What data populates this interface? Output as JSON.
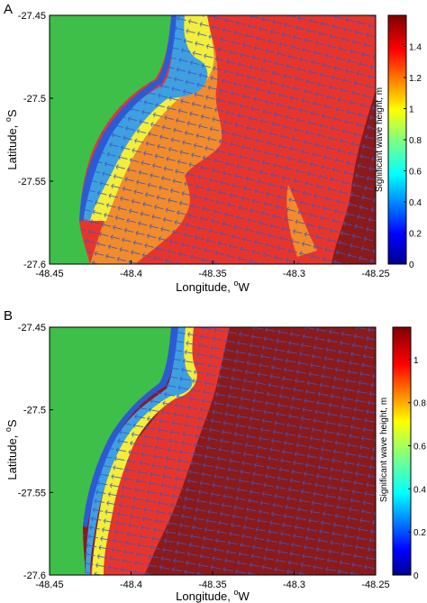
{
  "figure": {
    "panels": [
      "A",
      "B"
    ]
  },
  "chart_data": [
    {
      "type": "heatmap",
      "panel": "A",
      "xlabel": "Longitude, ",
      "xlabel_sup": "o",
      "xlabel_unit": "W",
      "ylabel": "Latitude, ",
      "ylabel_sup": "o",
      "ylabel_unit": "S",
      "x_ticks": [
        "-48.45",
        "-48.4",
        "-48.35",
        "-48.3",
        "-48.25"
      ],
      "y_ticks": [
        "-27.45",
        "-27.5",
        "-27.55",
        "-27.6"
      ],
      "xlim": [
        -48.45,
        -48.25
      ],
      "ylim": [
        -27.6,
        -27.45
      ],
      "colorbar": {
        "label": "Significant wave height, m",
        "ticks": [
          "0",
          "0.2",
          "0.4",
          "0.6",
          "0.8",
          "1",
          "1.2",
          "1.4"
        ],
        "range": [
          0,
          1.6
        ]
      },
      "regions": {
        "land": "#3dbf4a",
        "shoal_deep": "#2a5bd7",
        "shoal_cyan": "#3fa0e0",
        "surf_yellow": "#f2ee3a",
        "nearshore_orange": "#f28b2a",
        "offshore_red": "#e8352b",
        "far_offshore": "#8b1a1a"
      },
      "vector_color": "#3b56c8"
    },
    {
      "type": "heatmap",
      "panel": "B",
      "xlabel": "Longitude, ",
      "xlabel_sup": "o",
      "xlabel_unit": "W",
      "ylabel": "Latitude, ",
      "ylabel_sup": "o",
      "ylabel_unit": "S",
      "x_ticks": [
        "-48.45",
        "-48.4",
        "-48.35",
        "-48.3",
        "-48.25"
      ],
      "y_ticks": [
        "-27.45",
        "-27.5",
        "-27.55",
        "-27.6"
      ],
      "xlim": [
        -48.45,
        -48.25
      ],
      "ylim": [
        -27.6,
        -27.45
      ],
      "colorbar": {
        "label": "Significant wave height, m",
        "ticks": [
          "0",
          "0.2",
          "0.4",
          "0.6",
          "0.8",
          "1"
        ],
        "range": [
          0,
          1.15
        ]
      },
      "regions": {
        "land": "#3dbf4a",
        "shoal_deep": "#2a5bd7",
        "shoal_cyan": "#3fa0e0",
        "surf_yellow": "#f2ee3a",
        "nearshore_red": "#e8352b",
        "far_offshore": "#8b1a1a"
      },
      "vector_color": "#3b56c8"
    }
  ]
}
